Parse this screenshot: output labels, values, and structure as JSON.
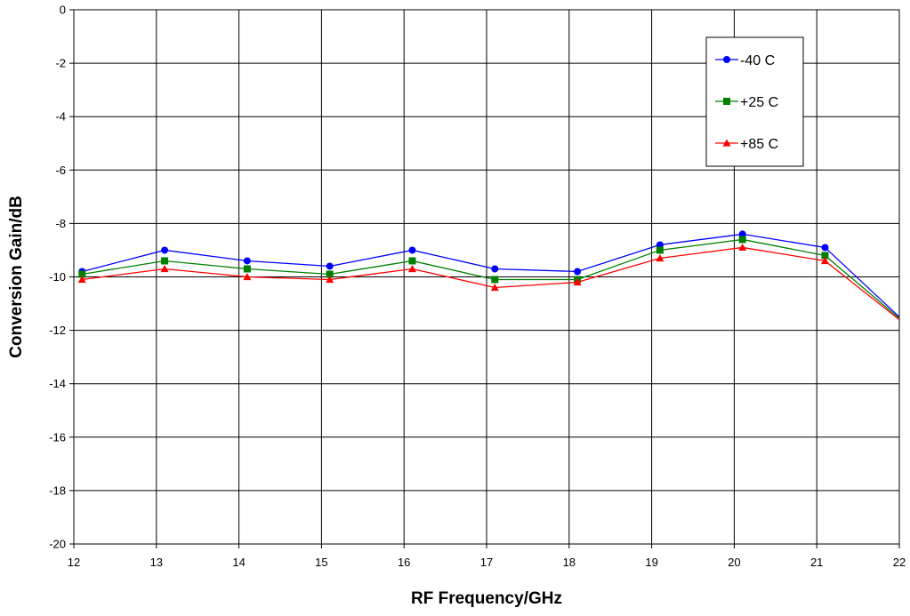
{
  "chart_data": {
    "type": "line",
    "title": "",
    "xlabel": "RF Frequency/GHz",
    "ylabel": "Conversion Gain/dB",
    "xlim": [
      12,
      22
    ],
    "ylim": [
      -20,
      0
    ],
    "x_ticks": [
      12,
      13,
      14,
      15,
      16,
      17,
      18,
      19,
      20,
      21,
      22
    ],
    "y_ticks": [
      0,
      -2,
      -4,
      -6,
      -8,
      -10,
      -12,
      -14,
      -16,
      -18,
      -20
    ],
    "grid": true,
    "legend_position": "top-right",
    "x": [
      12.1,
      13.1,
      14.1,
      15.1,
      16.1,
      17.1,
      18.1,
      19.1,
      20.1,
      21.1,
      22
    ],
    "series": [
      {
        "name": "-40 C",
        "color": "#0000ff",
        "marker": "circle",
        "values": [
          -9.8,
          -9.0,
          -9.4,
          -9.6,
          -9.0,
          -9.7,
          -9.8,
          -8.8,
          -8.4,
          -8.9,
          -11.5
        ]
      },
      {
        "name": "+25 C",
        "color": "#008000",
        "marker": "square",
        "values": [
          -9.9,
          -9.4,
          -9.7,
          -9.9,
          -9.4,
          -10.1,
          -10.1,
          -9.0,
          -8.6,
          -9.2,
          -11.55
        ]
      },
      {
        "name": "+85 C",
        "color": "#ff0000",
        "marker": "triangle",
        "values": [
          -10.1,
          -9.7,
          -10.0,
          -10.1,
          -9.7,
          -10.4,
          -10.2,
          -9.3,
          -8.9,
          -9.4,
          -11.6
        ]
      }
    ]
  }
}
